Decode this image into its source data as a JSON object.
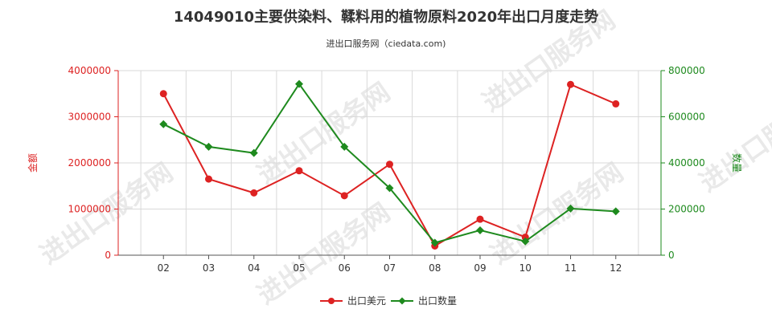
{
  "chart_data": {
    "type": "line",
    "title": "14049010主要供染料、鞣料用的植物原料2020年出口月度走势",
    "subtitle": "进出口服务网（ciedata.com)",
    "categories": [
      "02",
      "03",
      "04",
      "05",
      "06",
      "07",
      "08",
      "09",
      "10",
      "11",
      "12"
    ],
    "y_left": {
      "label": "金额",
      "ylim": [
        0,
        4000000
      ],
      "ticks": [
        "0",
        "1000000",
        "2000000",
        "3000000",
        "4000000"
      ]
    },
    "y_right": {
      "label": "数量",
      "ylim": [
        0,
        800000
      ],
      "ticks": [
        "0",
        "200000",
        "400000",
        "600000",
        "800000"
      ]
    },
    "series": [
      {
        "name": "出口美元",
        "axis": "left",
        "color": "#dd2222",
        "values": [
          3500000,
          1650000,
          1350000,
          1830000,
          1290000,
          1970000,
          200000,
          780000,
          390000,
          3700000,
          3280000
        ]
      },
      {
        "name": "出口数量",
        "axis": "right",
        "color": "#1e8a1e",
        "values": [
          568000,
          470000,
          443000,
          742000,
          470000,
          291000,
          54000,
          108000,
          60000,
          202000,
          190000
        ]
      }
    ],
    "grid": true,
    "legend_position": "bottom-center"
  },
  "watermark": "进出口服务网"
}
